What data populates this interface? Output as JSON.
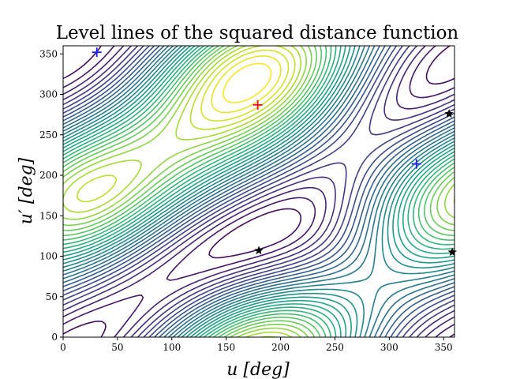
{
  "chart_data": {
    "type": "contour",
    "title": "Level lines of the squared distance function",
    "xlabel": "u [deg]",
    "ylabel": "u′ [deg]",
    "xlim": [
      0,
      360
    ],
    "ylim": [
      0,
      360
    ],
    "xticks": [
      0,
      50,
      100,
      150,
      200,
      250,
      300,
      350
    ],
    "yticks": [
      0,
      50,
      100,
      150,
      200,
      250,
      300,
      350
    ],
    "colormap": "viridis",
    "grid": false,
    "critical_points": [
      {
        "kind": "maximum",
        "marker": "+",
        "color": "#e8112d",
        "x": 179,
        "y": 287
      },
      {
        "kind": "minimum",
        "marker": "+",
        "color": "#1f1fff",
        "x": 31,
        "y": 352
      },
      {
        "kind": "minimum",
        "marker": "+",
        "color": "#1f1fff",
        "x": 325,
        "y": 214
      },
      {
        "kind": "saddle",
        "marker": "★",
        "color": "#000000",
        "x": 180,
        "y": 107
      },
      {
        "kind": "saddle",
        "marker": "★",
        "color": "#000000",
        "x": 355,
        "y": 276
      },
      {
        "kind": "saddle",
        "marker": "★",
        "color": "#000000",
        "x": 358,
        "y": 105
      }
    ]
  }
}
